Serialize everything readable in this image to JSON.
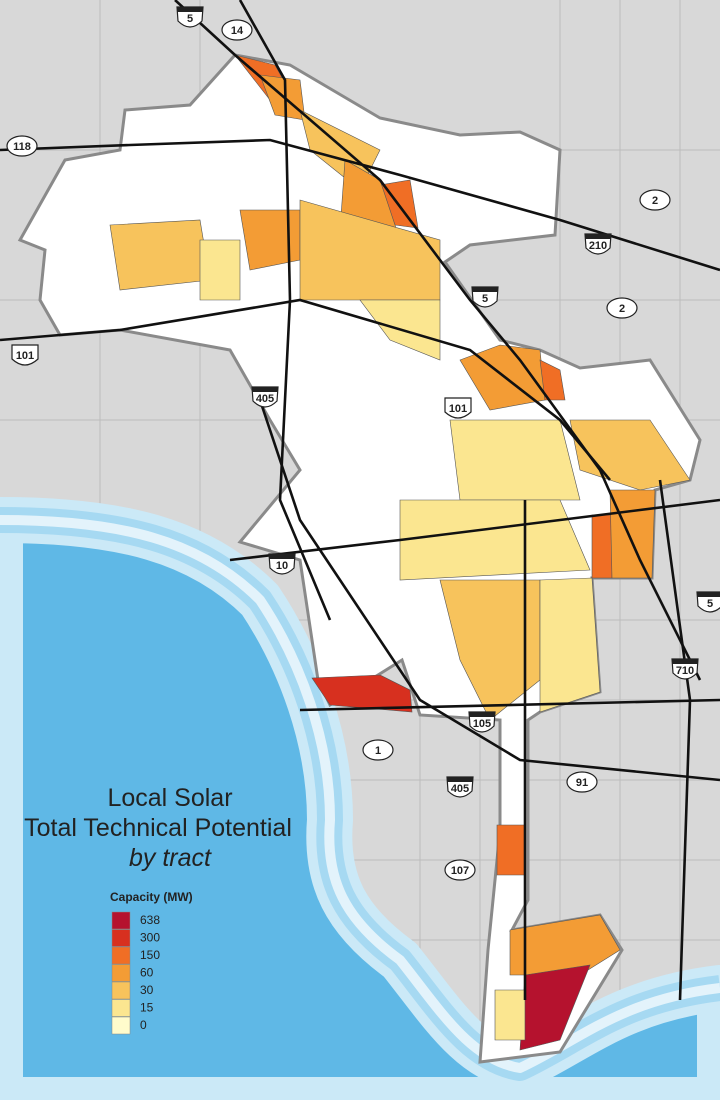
{
  "title": {
    "line1": "Local Solar",
    "line2": "Total Technical Potential",
    "line3": "by tract"
  },
  "legend": {
    "title": "Capacity (MW)",
    "classes": [
      {
        "value": 638,
        "color": "#b5122e"
      },
      {
        "value": 300,
        "color": "#d7301f"
      },
      {
        "value": 150,
        "color": "#f06e25"
      },
      {
        "value": 60,
        "color": "#f39c35"
      },
      {
        "value": 30,
        "color": "#f7c35c"
      },
      {
        "value": 15,
        "color": "#fbe690"
      },
      {
        "value": 0,
        "color": "#fffccc"
      }
    ]
  },
  "routes": [
    {
      "label": "5",
      "kind": "interstate"
    },
    {
      "label": "14",
      "kind": "state"
    },
    {
      "label": "118",
      "kind": "state"
    },
    {
      "label": "2",
      "kind": "state"
    },
    {
      "label": "210",
      "kind": "interstate"
    },
    {
      "label": "5",
      "kind": "interstate"
    },
    {
      "label": "2",
      "kind": "state"
    },
    {
      "label": "101",
      "kind": "us"
    },
    {
      "label": "405",
      "kind": "interstate"
    },
    {
      "label": "101",
      "kind": "us"
    },
    {
      "label": "10",
      "kind": "interstate"
    },
    {
      "label": "5",
      "kind": "interstate"
    },
    {
      "label": "710",
      "kind": "interstate"
    },
    {
      "label": "105",
      "kind": "interstate"
    },
    {
      "label": "1",
      "kind": "state"
    },
    {
      "label": "405",
      "kind": "interstate"
    },
    {
      "label": "91",
      "kind": "state"
    },
    {
      "label": "107",
      "kind": "state"
    }
  ]
}
